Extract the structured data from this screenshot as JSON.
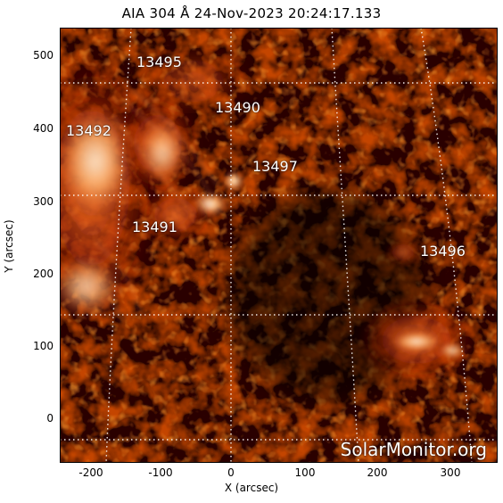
{
  "title": "AIA 304 Å 24-Nov-2023 20:24:17.133",
  "axes": {
    "xlabel": "X (arcsec)",
    "ylabel": "Y (arcsec)",
    "x_ticks": [
      "-200",
      "-100",
      "0",
      "100",
      "200",
      "300"
    ],
    "y_ticks": [
      "500",
      "400",
      "300",
      "200",
      "100",
      "0"
    ]
  },
  "regions": [
    {
      "id": "13495",
      "label": "13495"
    },
    {
      "id": "13490",
      "label": "13490"
    },
    {
      "id": "13492",
      "label": "13492"
    },
    {
      "id": "13497",
      "label": "13497"
    },
    {
      "id": "13491",
      "label": "13491"
    },
    {
      "id": "13496",
      "label": "13496"
    }
  ],
  "watermark": "SolarMonitor.org",
  "colors": {
    "background": "#000000",
    "plasma_dark": "#5a0a00",
    "plasma_mid": "#b8300a",
    "plasma_bright": "#ff8a3a",
    "plasma_white": "#fff3d0",
    "grid": "#ffffff"
  }
}
